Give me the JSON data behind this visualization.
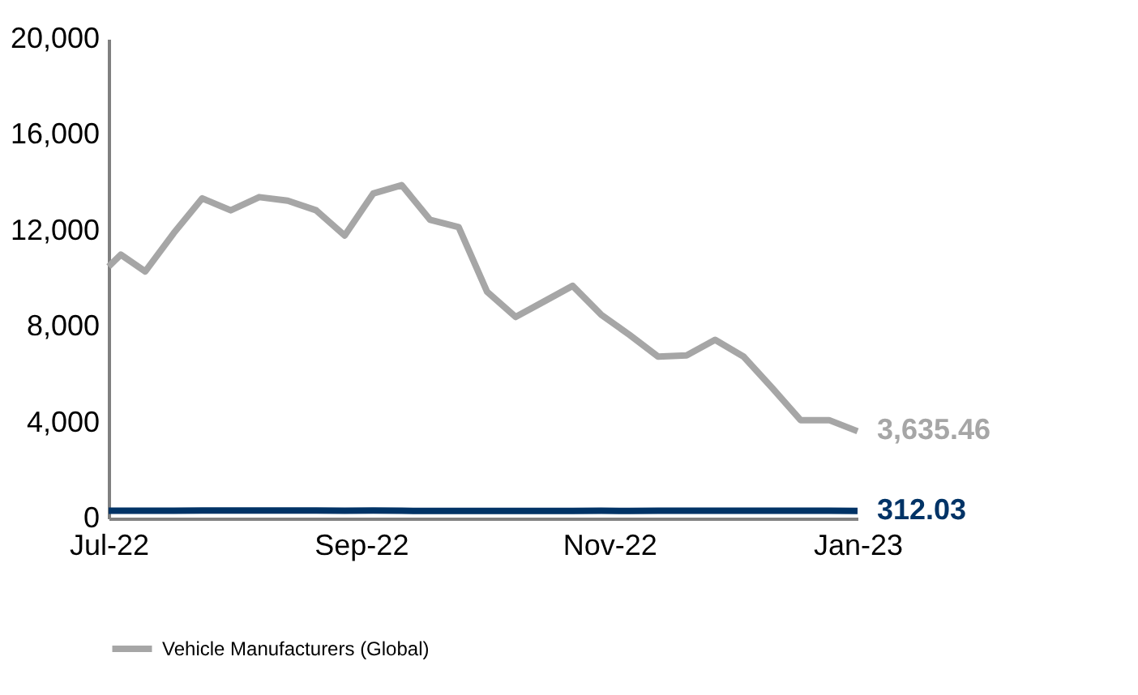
{
  "chart_data": {
    "type": "line",
    "x": [
      "2022-07-01",
      "2022-07-04",
      "2022-07-10",
      "2022-07-17",
      "2022-07-24",
      "2022-07-31",
      "2022-08-07",
      "2022-08-14",
      "2022-08-21",
      "2022-08-28",
      "2022-09-04",
      "2022-09-11",
      "2022-09-18",
      "2022-09-25",
      "2022-10-02",
      "2022-10-09",
      "2022-10-16",
      "2022-10-23",
      "2022-10-30",
      "2022-11-06",
      "2022-11-13",
      "2022-11-20",
      "2022-11-27",
      "2022-12-04",
      "2022-12-11",
      "2022-12-18",
      "2022-12-25",
      "2023-01-01"
    ],
    "series": [
      {
        "color": "#003366",
        "values": [
          320,
          320,
          320,
          320,
          330,
          330,
          330,
          330,
          330,
          320,
          330,
          320,
          310,
          310,
          310,
          310,
          310,
          310,
          320,
          310,
          320,
          320,
          320,
          320,
          320,
          320,
          320,
          312.03
        ],
        "value_labels": [
          null,
          null,
          null,
          null,
          null,
          null,
          null,
          null,
          null,
          null,
          null,
          null,
          null,
          null,
          null,
          null,
          null,
          null,
          null,
          null,
          null,
          null,
          null,
          null,
          null,
          null,
          null,
          "312.03"
        ]
      },
      {
        "name": "Vehicle Manufacturers (Global)",
        "color": "#a6a6a6",
        "values": [
          10500,
          11000,
          10300,
          11900,
          13350,
          12850,
          13400,
          13250,
          12850,
          11800,
          13550,
          13900,
          12450,
          12150,
          9450,
          8400,
          9050,
          9700,
          8500,
          7650,
          6750,
          6800,
          7450,
          6750,
          5450,
          4100,
          4100,
          3635.46
        ],
        "value_labels": [
          null,
          null,
          null,
          null,
          null,
          null,
          null,
          null,
          null,
          null,
          null,
          null,
          null,
          null,
          null,
          null,
          null,
          null,
          null,
          null,
          null,
          null,
          null,
          null,
          null,
          null,
          null,
          "3,635.46"
        ]
      }
    ],
    "xlim": [
      "2022-07-01",
      "2023-01-01"
    ],
    "xticks": [
      {
        "value": "2022-07-01",
        "label": "Jul-22"
      },
      {
        "value": "2022-09-01",
        "label": "Sep-22"
      },
      {
        "value": "2022-11-01",
        "label": "Nov-22"
      },
      {
        "value": "2023-01-01",
        "label": "Jan-23"
      }
    ],
    "ylim": [
      0,
      20000
    ],
    "yticks": [
      {
        "value": 0,
        "label": "0"
      },
      {
        "value": 4000,
        "label": "4,000"
      },
      {
        "value": 8000,
        "label": "8,000"
      },
      {
        "value": 12000,
        "label": "12,000"
      },
      {
        "value": 16000,
        "label": "16,000"
      },
      {
        "value": 20000,
        "label": "20,000"
      }
    ],
    "grid": false,
    "legend": "bottom",
    "marker": "none",
    "line_style": "solid"
  }
}
